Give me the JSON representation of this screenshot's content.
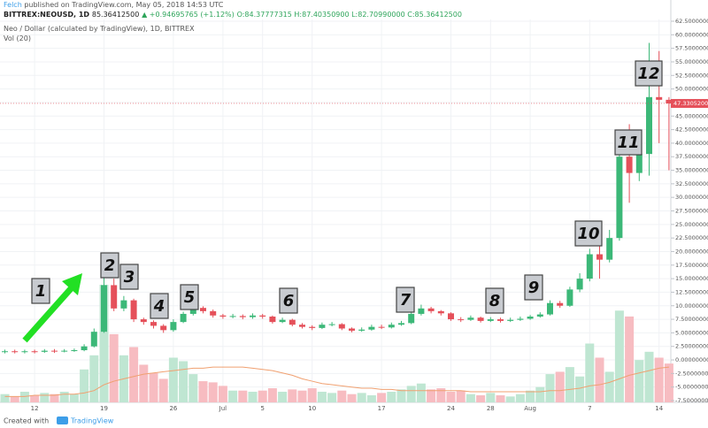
{
  "header": {
    "author": "Felch",
    "published": "published on TradingView.com, May 05, 2018 14:53 UTC",
    "symbol": "BITTREX:NEOUSD, 1D",
    "price": "85.36412500",
    "change": "▲ +0.94695765 (+1.12%)",
    "ohlc": "O:84.37777315 H:87.40350900 L:82.70990000 C:85.36412500"
  },
  "footer": {
    "text": "Created with",
    "brand": "TradingView"
  },
  "chart_data": {
    "type": "candlestick",
    "title": "Neo / Dollar (calculated by TradingView), 1D, BITTREX",
    "volume_label": "Vol (20)",
    "categories": [
      null,
      null,
      null,
      "12",
      null,
      null,
      null,
      null,
      null,
      null,
      "19",
      null,
      null,
      null,
      null,
      null,
      null,
      "26",
      null,
      null,
      null,
      null,
      "Jul",
      null,
      null,
      null,
      "5",
      null,
      null,
      null,
      null,
      "10",
      null,
      null,
      null,
      null,
      null,
      null,
      "17",
      null,
      null,
      null,
      null,
      null,
      null,
      "24",
      null,
      null,
      null,
      "28",
      null,
      null,
      null,
      "Aug",
      null,
      null,
      null,
      null,
      null,
      "7",
      null,
      null,
      null,
      null,
      null,
      null,
      "14",
      null
    ],
    "open": [
      1.5,
      1.6,
      1.5,
      1.6,
      1.5,
      1.7,
      1.6,
      1.7,
      1.8,
      2.5,
      5.2,
      13.8,
      9.5,
      11,
      7.5,
      7,
      6.3,
      5.5,
      7,
      8.5,
      9.6,
      9,
      8.2,
      8,
      8.1,
      7.9,
      8.2,
      8,
      7,
      7.4,
      6.5,
      6.1,
      5.9,
      6.5,
      6.6,
      5.8,
      5.4,
      5.6,
      6.1,
      6,
      6.5,
      6.8,
      8.5,
      9.5,
      9,
      8.6,
      7.5,
      7.4,
      7.8,
      7.2,
      7.5,
      7.2,
      7.4,
      7.6,
      8,
      8.4,
      10.5,
      10,
      13,
      15,
      19.5,
      18.5,
      22.5,
      37.5,
      34.5,
      38,
      48.5,
      48
    ],
    "high": [
      1.9,
      1.9,
      1.9,
      1.9,
      2,
      2,
      2,
      2.1,
      2.9,
      5.8,
      15.5,
      15,
      11.8,
      11.3,
      7.8,
      7.3,
      6.6,
      7.5,
      8.9,
      10,
      9.9,
      9.3,
      8.5,
      8.5,
      8.4,
      8.6,
      8.5,
      8.2,
      7.8,
      7.6,
      6.8,
      6.4,
      6.9,
      7,
      6.8,
      6,
      6,
      6.5,
      6.5,
      6.9,
      7.2,
      9,
      10.2,
      9.8,
      9.2,
      8.8,
      7.9,
      8.2,
      8,
      7.9,
      7.8,
      7.8,
      8,
      8.3,
      8.8,
      11,
      10.9,
      13.5,
      16,
      20.5,
      21.5,
      24,
      40,
      43.5,
      41,
      58.5,
      57,
      48.5
    ],
    "low": [
      1.2,
      1.2,
      1.2,
      1.2,
      1.3,
      1.3,
      1.4,
      1.5,
      1.6,
      2.3,
      5,
      9,
      9,
      7,
      6.5,
      5.8,
      5,
      5.2,
      6.8,
      8.2,
      8.6,
      7.8,
      7.6,
      7.7,
      7.5,
      7.6,
      7.6,
      6.7,
      6.8,
      6.2,
      5.8,
      5.5,
      5.7,
      6.2,
      5.5,
      5.1,
      5.2,
      5.4,
      5.7,
      5.8,
      6.3,
      6.6,
      8.2,
      8.6,
      8.2,
      7.2,
      7,
      7.2,
      6.9,
      7,
      6.9,
      7,
      7.2,
      7.4,
      7.8,
      8.2,
      9.6,
      9.8,
      12.5,
      14.5,
      15,
      18,
      22,
      29,
      33,
      34,
      40,
      35
    ],
    "close": [
      1.6,
      1.5,
      1.6,
      1.5,
      1.7,
      1.6,
      1.7,
      1.8,
      2.5,
      5.2,
      13.8,
      9.5,
      11,
      7.5,
      7,
      6.3,
      5.5,
      7,
      8.5,
      9.6,
      9,
      8.2,
      8,
      8.1,
      7.9,
      8.2,
      8,
      7,
      7.4,
      6.5,
      6.1,
      5.9,
      6.5,
      6.6,
      5.8,
      5.4,
      5.6,
      6.1,
      6,
      6.5,
      6.8,
      8.5,
      9.5,
      9,
      8.6,
      7.5,
      7.4,
      7.8,
      7.2,
      7.5,
      7.2,
      7.4,
      7.6,
      8,
      8.4,
      10.5,
      10,
      13,
      15,
      19.5,
      18.5,
      22.5,
      37.5,
      34.5,
      38,
      48.5,
      48,
      47.33
    ],
    "volume": [
      7,
      5,
      9,
      6,
      8,
      7,
      9,
      7,
      28,
      40,
      100,
      58,
      40,
      47,
      32,
      25,
      20,
      38,
      35,
      24,
      18,
      17,
      14,
      10,
      10,
      9,
      10,
      12,
      9,
      11,
      10,
      12,
      9,
      8,
      10,
      7,
      8,
      6,
      8,
      9,
      11,
      14,
      16,
      11,
      12,
      9,
      10,
      7,
      6,
      8,
      6,
      5,
      7,
      10,
      13,
      24,
      26,
      30,
      22,
      50,
      38,
      26,
      78,
      73,
      36,
      43,
      38,
      33
    ],
    "volume_ma": [
      5,
      5,
      5,
      6,
      6,
      6,
      7,
      7,
      8,
      10,
      15,
      18,
      20,
      22,
      24,
      25,
      26,
      27,
      28,
      29,
      29,
      30,
      30,
      30,
      30,
      29,
      28,
      27,
      25,
      23,
      20,
      18,
      16,
      15,
      14,
      13,
      12,
      12,
      11,
      11,
      10,
      10,
      10,
      10,
      10,
      10,
      10,
      9,
      9,
      9,
      9,
      9,
      9,
      9,
      9,
      10,
      10,
      11,
      12,
      14,
      15,
      17,
      20,
      23,
      25,
      27,
      29,
      30
    ],
    "up_color": "#3cb878",
    "down_color": "#e5505a",
    "up_volume_color": "#bfe6d2",
    "down_volume_color": "#f7bcc1",
    "ma_color": "#f0a070",
    "ylim": [
      -7.5,
      62.5
    ],
    "yticks": [
      {
        "value": -7.5,
        "label": "-7.50000000"
      },
      {
        "value": -5,
        "label": "-5.00000000"
      },
      {
        "value": -2.5,
        "label": "-2.50000000"
      },
      {
        "value": 0,
        "label": "0.00000000"
      },
      {
        "value": 2.5,
        "label": "2.50000000"
      },
      {
        "value": 5,
        "label": "5.00000000"
      },
      {
        "value": 7.5,
        "label": "7.50000000"
      },
      {
        "value": 10,
        "label": "10.00000000"
      },
      {
        "value": 12.5,
        "label": "12.50000000"
      },
      {
        "value": 15,
        "label": "15.00000000"
      },
      {
        "value": 17.5,
        "label": "17.50000000"
      },
      {
        "value": 20,
        "label": "20.00000000"
      },
      {
        "value": 22.5,
        "label": "22.50000000"
      },
      {
        "value": 25,
        "label": "25.00000000"
      },
      {
        "value": 27.5,
        "label": "27.50000000"
      },
      {
        "value": 30,
        "label": "30.00000000"
      },
      {
        "value": 32.5,
        "label": "32.50000000"
      },
      {
        "value": 35,
        "label": "35.00000000"
      },
      {
        "value": 37.5,
        "label": "37.50000000"
      },
      {
        "value": 40,
        "label": "40.00000000"
      },
      {
        "value": 42.5,
        "label": "42.50000000"
      },
      {
        "value": 45,
        "label": "45.00000000"
      },
      {
        "value": 47.5,
        "label": "47.50000000"
      },
      {
        "value": 50,
        "label": "50.00000000"
      },
      {
        "value": 52.5,
        "label": "52.50000000"
      },
      {
        "value": 55,
        "label": "55.00000000"
      },
      {
        "value": 57.5,
        "label": "57.50000000"
      },
      {
        "value": 60,
        "label": "60.00000000"
      },
      {
        "value": 62.5,
        "label": "62.50000000"
      }
    ],
    "last_price": {
      "value": 47.33052,
      "label": "47.33052000"
    },
    "annotations": [
      "1",
      "2",
      "3",
      "4",
      "5",
      "6",
      "7",
      "8",
      "9",
      "10",
      "11",
      "12"
    ],
    "grid": true
  }
}
